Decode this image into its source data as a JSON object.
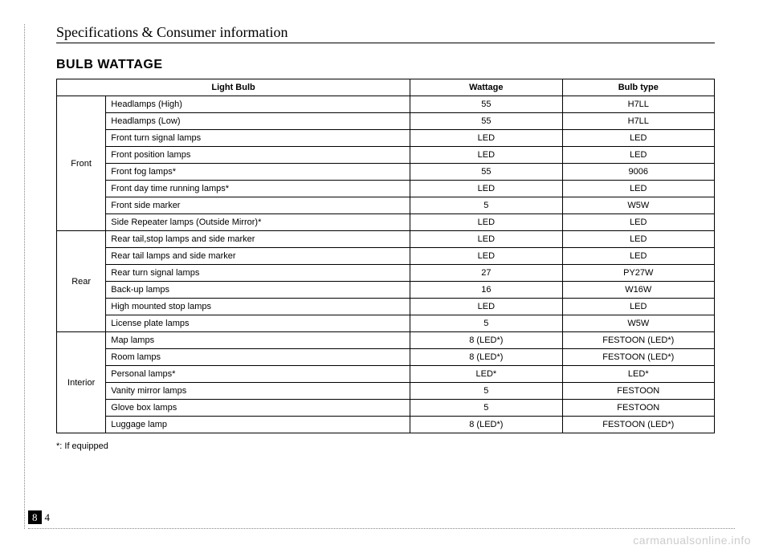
{
  "header": "Specifications & Consumer information",
  "title": "BULB WATTAGE",
  "columns": {
    "c1": "Light Bulb",
    "c2": "Wattage",
    "c3": "Bulb type"
  },
  "groups": [
    {
      "label": "Front",
      "rows": [
        {
          "item": "Headlamps (High)",
          "wattage": "55",
          "type": "H7LL"
        },
        {
          "item": "Headlamps (Low)",
          "wattage": "55",
          "type": "H7LL"
        },
        {
          "item": "Front turn signal lamps",
          "wattage": "LED",
          "type": "LED"
        },
        {
          "item": "Front position lamps",
          "wattage": "LED",
          "type": "LED"
        },
        {
          "item": "Front fog lamps*",
          "wattage": "55",
          "type": "9006"
        },
        {
          "item": "Front day time running lamps*",
          "wattage": "LED",
          "type": "LED"
        },
        {
          "item": "Front side marker",
          "wattage": "5",
          "type": "W5W"
        },
        {
          "item": "Side Repeater lamps (Outside Mirror)*",
          "wattage": "LED",
          "type": "LED"
        }
      ]
    },
    {
      "label": "Rear",
      "rows": [
        {
          "item": "Rear tail,stop lamps and side marker",
          "wattage": "LED",
          "type": "LED"
        },
        {
          "item": "Rear tail lamps and side marker",
          "wattage": "LED",
          "type": "LED"
        },
        {
          "item": "Rear turn signal lamps",
          "wattage": "27",
          "type": "PY27W"
        },
        {
          "item": "Back-up lamps",
          "wattage": "16",
          "type": "W16W"
        },
        {
          "item": "High mounted stop lamps",
          "wattage": "LED",
          "type": "LED"
        },
        {
          "item": "License plate lamps",
          "wattage": "5",
          "type": "W5W"
        }
      ]
    },
    {
      "label": "Interior",
      "rows": [
        {
          "item": "Map lamps",
          "wattage": "8 (LED*)",
          "type": "FESTOON (LED*)"
        },
        {
          "item": "Room lamps",
          "wattage": "8 (LED*)",
          "type": "FESTOON (LED*)"
        },
        {
          "item": "Personal lamps*",
          "wattage": "LED*",
          "type": "LED*"
        },
        {
          "item": "Vanity mirror lamps",
          "wattage": "5",
          "type": "FESTOON"
        },
        {
          "item": "Glove box lamps",
          "wattage": "5",
          "type": "FESTOON"
        },
        {
          "item": "Luggage lamp",
          "wattage": "8 (LED*)",
          "type": "FESTOON (LED*)"
        }
      ]
    }
  ],
  "footnote": "*: If equipped",
  "page_chapter": "8",
  "page_number": "4",
  "watermark": "carmanualsonline.info"
}
